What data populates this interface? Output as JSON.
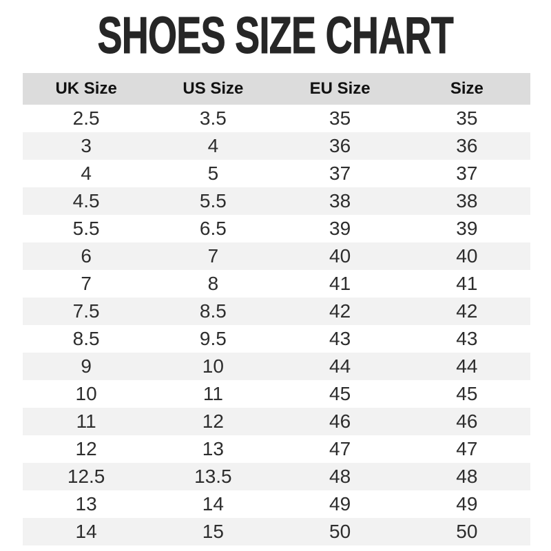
{
  "title": "SHOES SIZE CHART",
  "colors": {
    "page_bg": "#ffffff",
    "header_bg": "#dcdcdc",
    "row_alt_bg": "#f2f2f2",
    "title_color": "#262626",
    "header_text": "#111111",
    "cell_text": "#2d2d2d"
  },
  "chart_data": {
    "type": "table",
    "title": "SHOES SIZE CHART",
    "columns": [
      "UK Size",
      "US Size",
      "EU Size",
      "Size"
    ],
    "rows": [
      [
        "2.5",
        "3.5",
        "35",
        "35"
      ],
      [
        "3",
        "4",
        "36",
        "36"
      ],
      [
        "4",
        "5",
        "37",
        "37"
      ],
      [
        "4.5",
        "5.5",
        "38",
        "38"
      ],
      [
        "5.5",
        "6.5",
        "39",
        "39"
      ],
      [
        "6",
        "7",
        "40",
        "40"
      ],
      [
        "7",
        "8",
        "41",
        "41"
      ],
      [
        "7.5",
        "8.5",
        "42",
        "42"
      ],
      [
        "8.5",
        "9.5",
        "43",
        "43"
      ],
      [
        "9",
        "10",
        "44",
        "44"
      ],
      [
        "10",
        "11",
        "45",
        "45"
      ],
      [
        "11",
        "12",
        "46",
        "46"
      ],
      [
        "12",
        "13",
        "47",
        "47"
      ],
      [
        "12.5",
        "13.5",
        "48",
        "48"
      ],
      [
        "13",
        "14",
        "49",
        "49"
      ],
      [
        "14",
        "15",
        "50",
        "50"
      ]
    ],
    "layout": {
      "striped": true,
      "stripe_pattern": "even rows shaded",
      "column_alignment": "center"
    }
  }
}
